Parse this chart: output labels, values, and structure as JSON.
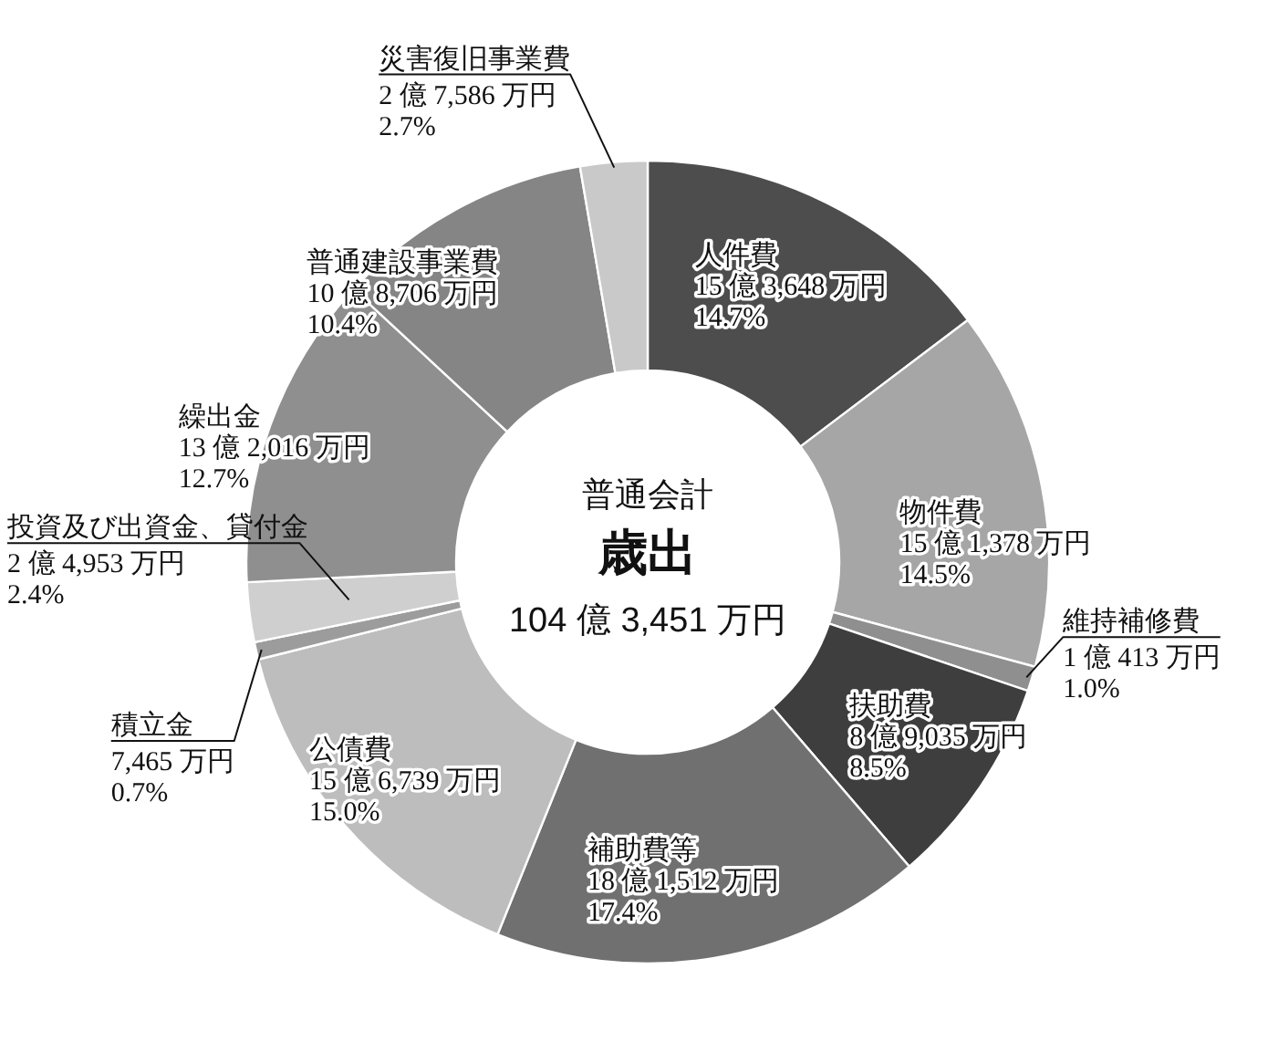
{
  "chart_data": {
    "type": "donut",
    "title": "歳出",
    "subtitle": "普通会計",
    "annotations": [
      "104 億 3,451 万円"
    ],
    "categories": [
      "人件費",
      "物件費",
      "維持補修費",
      "扶助費",
      "補助費等",
      "公債費",
      "積立金",
      "投資及び出資金、貸付金",
      "繰出金",
      "普通建設事業費",
      "災害復旧事業費"
    ],
    "values": [
      14.7,
      14.5,
      1.0,
      8.5,
      17.4,
      15.0,
      0.7,
      2.4,
      12.7,
      10.4,
      2.7
    ],
    "value_labels": [
      "15 億 3,648 万円\n14.7%",
      "15 億 1,378 万円\n14.5%",
      "1 億 413 万円\n1.0%",
      "8 億 9,035 万円\n8.5%",
      "18 億 1,512 万円\n17.4%",
      "15 億 6,739 万円\n15.0%",
      "7,465 万円\n0.7%",
      "2 億 4,953 万円\n2.4%",
      "13 億 2,016 万円\n12.7%",
      "10 億 8,706 万円\n10.4%",
      "2 億 7,586 万円\n2.7%"
    ],
    "colors": [
      "#4d4d4d",
      "#a6a6a6",
      "#8f8f8f",
      "#3e3e3e",
      "#707070",
      "#bdbdbd",
      "#9c9c9c",
      "#cfcfcf",
      "#8f8f8f",
      "#858585",
      "#c9c9c9"
    ]
  }
}
